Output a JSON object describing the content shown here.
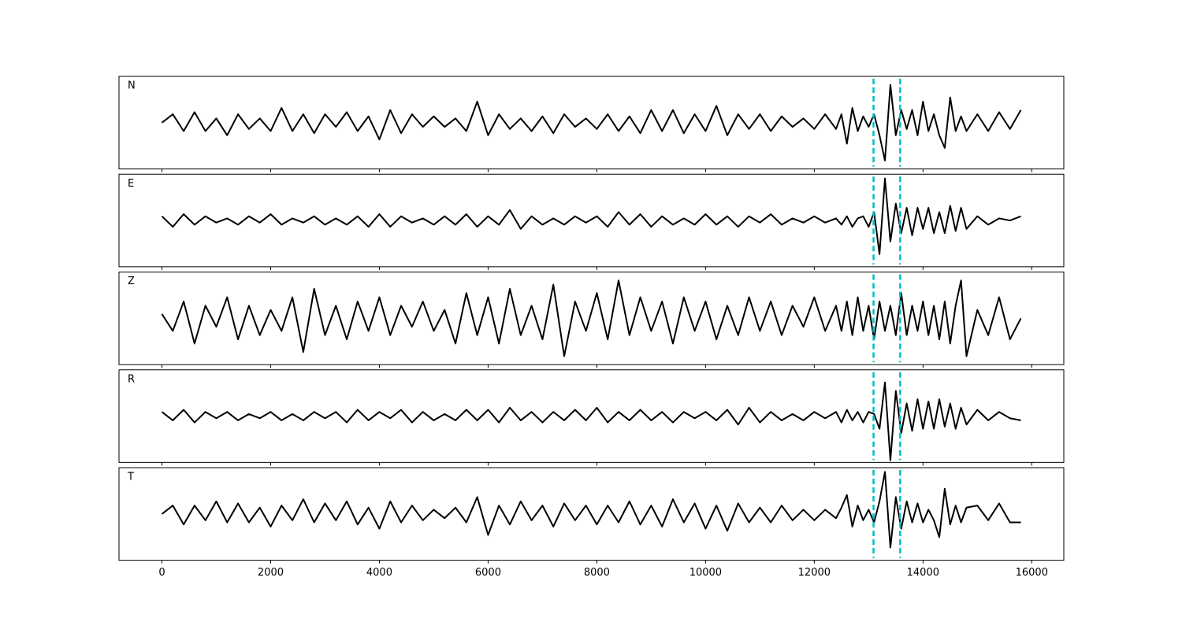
{
  "chart_data": {
    "type": "line",
    "subplots": true,
    "x": [
      0,
      200,
      400,
      600,
      800,
      1000,
      1200,
      1400,
      1600,
      1800,
      2000,
      2200,
      2400,
      2600,
      2800,
      3000,
      3200,
      3400,
      3600,
      3800,
      4000,
      4200,
      4400,
      4600,
      4800,
      5000,
      5200,
      5400,
      5600,
      5800,
      6000,
      6200,
      6400,
      6600,
      6800,
      7000,
      7200,
      7400,
      7600,
      7800,
      8000,
      8200,
      8400,
      8600,
      8800,
      9000,
      9200,
      9400,
      9600,
      9800,
      10000,
      10200,
      10400,
      10600,
      10800,
      11000,
      11200,
      11400,
      11600,
      11800,
      12000,
      12200,
      12400,
      12500,
      12600,
      12700,
      12800,
      12900,
      13000,
      13100,
      13200,
      13300,
      13400,
      13500,
      13600,
      13700,
      13800,
      13900,
      14000,
      14100,
      14200,
      14300,
      14400,
      14500,
      14600,
      14700,
      14800,
      15000,
      15200,
      15400,
      15600,
      15800
    ],
    "series": [
      {
        "name": "N",
        "color": "#000000",
        "values": [
          0,
          0.2,
          -0.2,
          0.25,
          -0.2,
          0.1,
          -0.3,
          0.2,
          -0.15,
          0.1,
          -0.2,
          0.35,
          -0.2,
          0.2,
          -0.25,
          0.2,
          -0.1,
          0.25,
          -0.2,
          0.15,
          -0.4,
          0.3,
          -0.25,
          0.2,
          -0.1,
          0.15,
          -0.1,
          0.1,
          -0.2,
          0.5,
          -0.3,
          0.2,
          -0.15,
          0.1,
          -0.2,
          0.15,
          -0.25,
          0.2,
          -0.1,
          0.1,
          -0.15,
          0.2,
          -0.2,
          0.15,
          -0.25,
          0.3,
          -0.2,
          0.3,
          -0.25,
          0.2,
          -0.2,
          0.4,
          -0.3,
          0.2,
          -0.15,
          0.2,
          -0.2,
          0.15,
          -0.1,
          0.1,
          -0.15,
          0.2,
          -0.15,
          0.2,
          -0.5,
          0.35,
          -0.2,
          0.15,
          -0.1,
          0.2,
          -0.3,
          -0.9,
          0.9,
          -0.3,
          0.3,
          -0.15,
          0.3,
          -0.3,
          0.5,
          -0.2,
          0.2,
          -0.3,
          -0.6,
          0.6,
          -0.2,
          0.15,
          -0.2,
          0.2,
          -0.2,
          0.25,
          -0.15,
          0.3
        ]
      },
      {
        "name": "E",
        "color": "#000000",
        "values": [
          0.1,
          -0.15,
          0.15,
          -0.1,
          0.1,
          -0.05,
          0.05,
          -0.1,
          0.1,
          -0.05,
          0.15,
          -0.1,
          0.05,
          -0.05,
          0.1,
          -0.1,
          0.05,
          -0.1,
          0.1,
          -0.15,
          0.15,
          -0.15,
          0.1,
          -0.05,
          0.05,
          -0.1,
          0.1,
          -0.1,
          0.15,
          -0.15,
          0.1,
          -0.1,
          0.25,
          -0.2,
          0.1,
          -0.1,
          0.05,
          -0.1,
          0.1,
          -0.05,
          0.1,
          -0.15,
          0.2,
          -0.1,
          0.15,
          -0.15,
          0.1,
          -0.1,
          0.05,
          -0.1,
          0.15,
          -0.1,
          0.1,
          -0.15,
          0.1,
          -0.05,
          0.15,
          -0.1,
          0.05,
          -0.05,
          0.1,
          -0.05,
          0.05,
          -0.1,
          0.1,
          -0.15,
          0.05,
          0.1,
          -0.15,
          0.2,
          -0.8,
          1.0,
          -0.5,
          0.4,
          -0.3,
          0.3,
          -0.35,
          0.3,
          -0.2,
          0.3,
          -0.3,
          0.2,
          -0.3,
          0.35,
          -0.25,
          0.3,
          -0.2,
          0.1,
          -0.1,
          0.05,
          0.0,
          0.1
        ]
      },
      {
        "name": "Z",
        "color": "#000000",
        "values": [
          0.1,
          -0.3,
          0.4,
          -0.6,
          0.3,
          -0.2,
          0.5,
          -0.5,
          0.3,
          -0.4,
          0.2,
          -0.3,
          0.5,
          -0.8,
          0.7,
          -0.4,
          0.3,
          -0.5,
          0.4,
          -0.3,
          0.5,
          -0.4,
          0.3,
          -0.2,
          0.4,
          -0.3,
          0.2,
          -0.6,
          0.6,
          -0.4,
          0.5,
          -0.6,
          0.7,
          -0.4,
          0.3,
          -0.5,
          0.8,
          -0.9,
          0.4,
          -0.3,
          0.6,
          -0.5,
          0.9,
          -0.4,
          0.5,
          -0.3,
          0.4,
          -0.6,
          0.5,
          -0.3,
          0.4,
          -0.5,
          0.3,
          -0.4,
          0.5,
          -0.3,
          0.4,
          -0.4,
          0.3,
          -0.2,
          0.5,
          -0.3,
          0.3,
          -0.3,
          0.4,
          -0.4,
          0.5,
          -0.3,
          0.3,
          -0.5,
          0.4,
          -0.3,
          0.3,
          -0.4,
          0.6,
          -0.4,
          0.3,
          -0.3,
          0.4,
          -0.4,
          0.3,
          -0.5,
          0.4,
          -0.6,
          0.3,
          0.9,
          -0.9,
          0.2,
          -0.4,
          0.5,
          -0.5,
          0.0
        ]
      },
      {
        "name": "R",
        "color": "#000000",
        "values": [
          0.1,
          -0.1,
          0.15,
          -0.15,
          0.1,
          -0.05,
          0.1,
          -0.1,
          0.05,
          -0.05,
          0.1,
          -0.1,
          0.05,
          -0.1,
          0.1,
          -0.05,
          0.1,
          -0.15,
          0.15,
          -0.1,
          0.1,
          -0.05,
          0.15,
          -0.15,
          0.1,
          -0.1,
          0.05,
          -0.1,
          0.15,
          -0.1,
          0.15,
          -0.15,
          0.2,
          -0.1,
          0.1,
          -0.15,
          0.1,
          -0.1,
          0.15,
          -0.1,
          0.2,
          -0.15,
          0.1,
          -0.1,
          0.15,
          -0.1,
          0.1,
          -0.15,
          0.1,
          -0.05,
          0.1,
          -0.1,
          0.15,
          -0.2,
          0.2,
          -0.15,
          0.1,
          -0.1,
          0.05,
          -0.1,
          0.1,
          -0.05,
          0.1,
          -0.15,
          0.15,
          -0.1,
          0.1,
          -0.15,
          0.1,
          0.05,
          -0.3,
          0.8,
          -1.05,
          0.6,
          -0.4,
          0.3,
          -0.35,
          0.4,
          -0.3,
          0.35,
          -0.3,
          0.4,
          -0.25,
          0.3,
          -0.3,
          0.2,
          -0.2,
          0.15,
          -0.1,
          0.1,
          -0.05,
          -0.1
        ]
      },
      {
        "name": "T",
        "color": "#000000",
        "values": [
          0,
          0.2,
          -0.25,
          0.2,
          -0.15,
          0.3,
          -0.2,
          0.25,
          -0.2,
          0.15,
          -0.3,
          0.2,
          -0.15,
          0.35,
          -0.2,
          0.25,
          -0.15,
          0.3,
          -0.25,
          0.15,
          -0.35,
          0.3,
          -0.2,
          0.2,
          -0.15,
          0.1,
          -0.1,
          0.15,
          -0.2,
          0.4,
          -0.5,
          0.2,
          -0.25,
          0.3,
          -0.15,
          0.2,
          -0.3,
          0.25,
          -0.15,
          0.2,
          -0.25,
          0.2,
          -0.2,
          0.3,
          -0.25,
          0.2,
          -0.3,
          0.35,
          -0.2,
          0.25,
          -0.35,
          0.2,
          -0.4,
          0.25,
          -0.2,
          0.15,
          -0.2,
          0.2,
          -0.15,
          0.1,
          -0.15,
          0.1,
          -0.1,
          0.15,
          0.45,
          -0.3,
          0.2,
          -0.15,
          0.1,
          -0.2,
          0.3,
          1.0,
          -0.8,
          0.4,
          -0.35,
          0.3,
          -0.2,
          0.25,
          -0.2,
          0.1,
          -0.15,
          -0.55,
          0.6,
          -0.25,
          0.2,
          -0.2,
          0.15,
          0.2,
          -0.15,
          0.25,
          -0.2,
          -0.2
        ]
      }
    ],
    "vlines": [
      13090,
      13580
    ],
    "vline_color": "#00bfbf",
    "xlim": [
      -790,
      16590
    ],
    "xticks": [
      0,
      2000,
      4000,
      6000,
      8000,
      10000,
      12000,
      14000,
      16000
    ],
    "ylim": [
      -1.1,
      1.1
    ]
  }
}
